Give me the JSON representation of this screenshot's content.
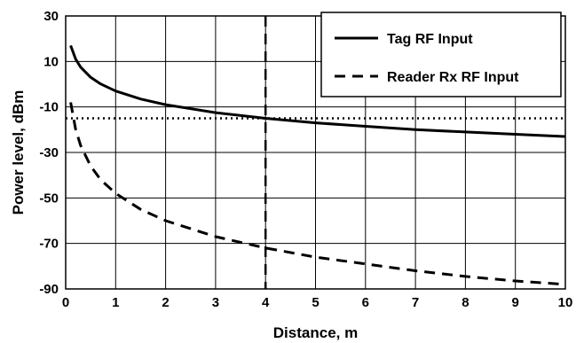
{
  "chart_data": {
    "type": "line",
    "title": "",
    "xlabel": "Distance, m",
    "ylabel": "Power level, dBm",
    "xlim": [
      0,
      10
    ],
    "ylim": [
      -90,
      30
    ],
    "x_ticks": [
      "0",
      "1",
      "2",
      "3",
      "4",
      "5",
      "6",
      "7",
      "8",
      "9",
      "10"
    ],
    "y_ticks": [
      "30",
      "10",
      "-10",
      "-30",
      "-50",
      "-70",
      "-90"
    ],
    "grid": true,
    "legend_position": "top-right",
    "series": [
      {
        "name": "Tag RF Input",
        "style": "solid",
        "color": "#000000",
        "x": [
          0.1,
          0.2,
          0.3,
          0.5,
          0.7,
          1,
          1.5,
          2,
          3,
          4,
          5,
          6,
          7,
          8,
          9,
          10
        ],
        "y": [
          17,
          11,
          7.5,
          3,
          0.1,
          -3,
          -6.5,
          -9,
          -12.5,
          -15,
          -17,
          -18.5,
          -20,
          -21,
          -22,
          -23
        ]
      },
      {
        "name": "Reader Rx RF Input",
        "style": "dashed",
        "color": "#000000",
        "x": [
          0.1,
          0.2,
          0.3,
          0.5,
          0.7,
          1,
          1.5,
          2,
          3,
          4,
          5,
          6,
          7,
          8,
          9,
          10
        ],
        "y": [
          -8,
          -20,
          -27,
          -36,
          -42,
          -48,
          -55,
          -60,
          -67,
          -72,
          -76,
          -79,
          -82,
          -84.5,
          -86.5,
          -88
        ]
      }
    ],
    "reference_lines": [
      {
        "orientation": "horizontal",
        "value": -15,
        "style": "dotted"
      },
      {
        "orientation": "vertical",
        "value": 4,
        "style": "dashed"
      }
    ]
  }
}
